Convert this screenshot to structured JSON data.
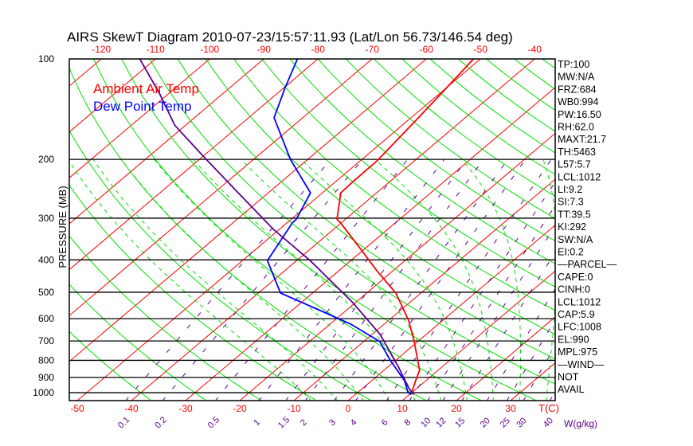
{
  "chart_data": {
    "type": "line",
    "title": "AIRS SkewT Diagram 2010-07-23/15:57:11.93 (Lat/Lon 56.73/146.54 deg)",
    "ylabel": "PRESSURE (MB)",
    "xlabel": "T(C)",
    "mixing_ratio_label": "W(g/kg)",
    "pressure_range": [
      100,
      1056
    ],
    "pressure_ticks": [
      100,
      200,
      300,
      400,
      500,
      600,
      700,
      800,
      900,
      1000
    ],
    "top_temp_ticks": [
      -120,
      -110,
      -100,
      -90,
      -80,
      -70,
      -60,
      -50,
      -40
    ],
    "bottom_temp_ticks": [
      -50,
      -40,
      -30,
      -20,
      -10,
      0,
      10,
      20,
      30
    ],
    "mixing_ratio_ticks": [
      "0.1",
      "0.2",
      "0.5",
      "1",
      "1.5",
      "2",
      "3",
      "4",
      "6",
      "8",
      "10",
      "12",
      "15",
      "20",
      "25",
      "30",
      "40"
    ],
    "isotherms_step_c": 10,
    "legend": [
      {
        "label": "Ambient Air Temp",
        "color": "#ff0000"
      },
      {
        "label": "Dew Point Temp",
        "color": "#0000ff"
      }
    ],
    "series": [
      {
        "name": "Ambient Air Temp",
        "color": "#ff0000",
        "points": [
          [
            1012,
            10.5
          ],
          [
            999,
            10.0
          ],
          [
            915,
            8.0
          ],
          [
            857,
            6.6
          ],
          [
            696,
            -1.0
          ],
          [
            606,
            -6.4
          ],
          [
            503,
            -14.6
          ],
          [
            431,
            -23.0
          ],
          [
            372,
            -30.6
          ],
          [
            310,
            -40.1
          ],
          [
            302,
            -41.6
          ],
          [
            252,
            -46.6
          ],
          [
            233,
            -46.8
          ],
          [
            202,
            -46.9
          ],
          [
            154,
            -48.5
          ],
          [
            127,
            -49.7
          ],
          [
            100,
            -51.3
          ]
        ]
      },
      {
        "name": "Dew Point Temp",
        "color": "#0000ff",
        "points": [
          [
            1012,
            10.3
          ],
          [
            999,
            9.3
          ],
          [
            921,
            6.1
          ],
          [
            798,
            -1.1
          ],
          [
            703,
            -7.0
          ],
          [
            623,
            -16.2
          ],
          [
            574,
            -23.7
          ],
          [
            503,
            -35.9
          ],
          [
            402,
            -45.4
          ],
          [
            310,
            -49.0
          ],
          [
            302,
            -49.1
          ],
          [
            252,
            -52.2
          ],
          [
            200,
            -63.2
          ],
          [
            150,
            -75.3
          ],
          [
            122,
            -79.8
          ],
          [
            100,
            -83.8
          ]
        ]
      },
      {
        "name": "Parcel",
        "color": "#5a0090",
        "points": [
          [
            1012,
            10.8
          ],
          [
            967,
            8.4
          ],
          [
            834,
            1.8
          ],
          [
            669,
            -8.5
          ],
          [
            537,
            -20.5
          ],
          [
            402,
            -37.5
          ],
          [
            324,
            -51.1
          ],
          [
            253,
            -65.3
          ],
          [
            197,
            -79.6
          ],
          [
            158,
            -92.0
          ],
          [
            127,
            -101.7
          ],
          [
            100,
            -112.9
          ]
        ]
      }
    ]
  },
  "indices": [
    "TP:100",
    "MW:N/A",
    "FRZ:684",
    "WB0:994",
    "PW:16.50",
    "RH:62.0",
    "MAXT:21.7",
    "TH:5463",
    "L57:5.7",
    "LCL:1012",
    "LI:9.2",
    "SI:7.3",
    "TT:39.5",
    "KI:292",
    "SW:N/A",
    "EI:0.2",
    "—PARCEL—",
    "CAPE:0",
    "CINH:0",
    "LCL:1012",
    "CAP:5.9",
    "LFC:1008",
    "EL:990",
    "MPL:975",
    "—WIND—",
    "NOT",
    "AVAIL"
  ],
  "colors": {
    "isotherm": "#ff0000",
    "dry_adiabat": "#00e000",
    "moist_adiabat": "#00e000",
    "mixing_ratio": "#5a0090",
    "frame": "#000000"
  }
}
